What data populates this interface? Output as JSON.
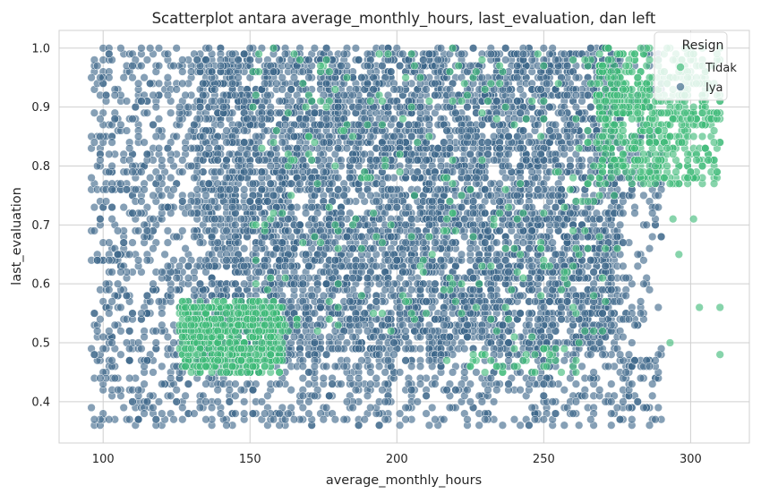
{
  "chart_data": {
    "type": "scatter",
    "title": "Scatterplot antara average_monthly_hours, last_evaluation, dan left",
    "xlabel": "average_monthly_hours",
    "ylabel": "last_evaluation",
    "xlim": [
      85,
      320
    ],
    "ylim": [
      0.33,
      1.03
    ],
    "xticks": [
      100,
      150,
      200,
      250,
      300
    ],
    "yticks": [
      0.4,
      0.5,
      0.6,
      0.7,
      0.8,
      0.9,
      1.0
    ],
    "grid": true,
    "legend": {
      "title": "Resign",
      "placement": "top-right"
    },
    "series": [
      {
        "name": "Tidak",
        "color": "#3dba78",
        "description_regions": [
          {
            "x": [
              126,
              161
            ],
            "y": [
              0.45,
              0.57
            ],
            "count": 600
          },
          {
            "x": [
              268,
              310
            ],
            "y": [
              0.77,
              1.0
            ],
            "count": 600
          },
          {
            "x": [
              150,
              275
            ],
            "y": [
              0.5,
              1.0
            ],
            "count": 260
          },
          {
            "x": [
              215,
              262
            ],
            "y": [
              0.45,
              0.49
            ],
            "count": 40
          }
        ],
        "extra_points": [
          {
            "x": 303,
            "y": 0.56
          },
          {
            "x": 310,
            "y": 0.56
          },
          {
            "x": 310,
            "y": 0.48
          },
          {
            "x": 296,
            "y": 0.65
          },
          {
            "x": 294,
            "y": 0.71
          },
          {
            "x": 301,
            "y": 0.71
          },
          {
            "x": 293,
            "y": 0.5
          }
        ]
      },
      {
        "name": "Iya",
        "color": "#3b6589",
        "description_regions": [
          {
            "x": [
              131,
              275
            ],
            "y": [
              0.48,
              1.0
            ],
            "count": 5200
          },
          {
            "x": [
              96,
              131
            ],
            "y": [
              0.36,
              1.0
            ],
            "count": 650
          },
          {
            "x": [
              131,
              290
            ],
            "y": [
              0.36,
              0.48
            ],
            "count": 550
          },
          {
            "x": [
              275,
              290
            ],
            "y": [
              0.45,
              1.0
            ],
            "count": 160
          }
        ]
      }
    ]
  }
}
